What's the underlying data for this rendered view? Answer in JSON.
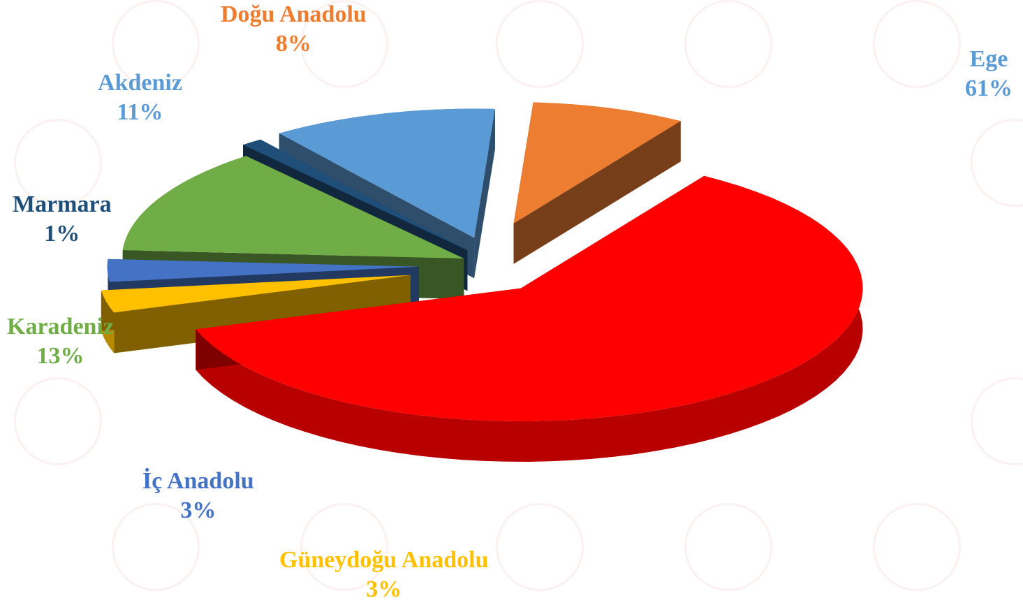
{
  "chart_data": {
    "type": "pie",
    "style": "3d-exploded",
    "legend": "none",
    "slices": [
      {
        "name": "Ege",
        "value": 61,
        "label": "61%",
        "color": "#ff0000",
        "label_color": "#5b9bd5"
      },
      {
        "name": "Güneydoğu Anadolu",
        "value": 3,
        "label": "3%",
        "color": "#ffc000",
        "label_color": "#ffc000"
      },
      {
        "name": "İç Anadolu",
        "value": 3,
        "label": "3%",
        "color": "#4472c4",
        "label_color": "#4472c4"
      },
      {
        "name": "Karadeniz",
        "value": 13,
        "label": "13%",
        "color": "#70ad47",
        "label_color": "#70ad47"
      },
      {
        "name": "Marmara",
        "value": 1,
        "label": "1%",
        "color": "#1f4e79",
        "label_color": "#1f4e79"
      },
      {
        "name": "Akdeniz",
        "value": 11,
        "label": "11%",
        "color": "#5b9bd5",
        "label_color": "#5b9bd5"
      },
      {
        "name": "Doğu Anadolu",
        "value": 8,
        "label": "8%",
        "color": "#ed7d31",
        "label_color": "#ed7d31"
      }
    ]
  }
}
